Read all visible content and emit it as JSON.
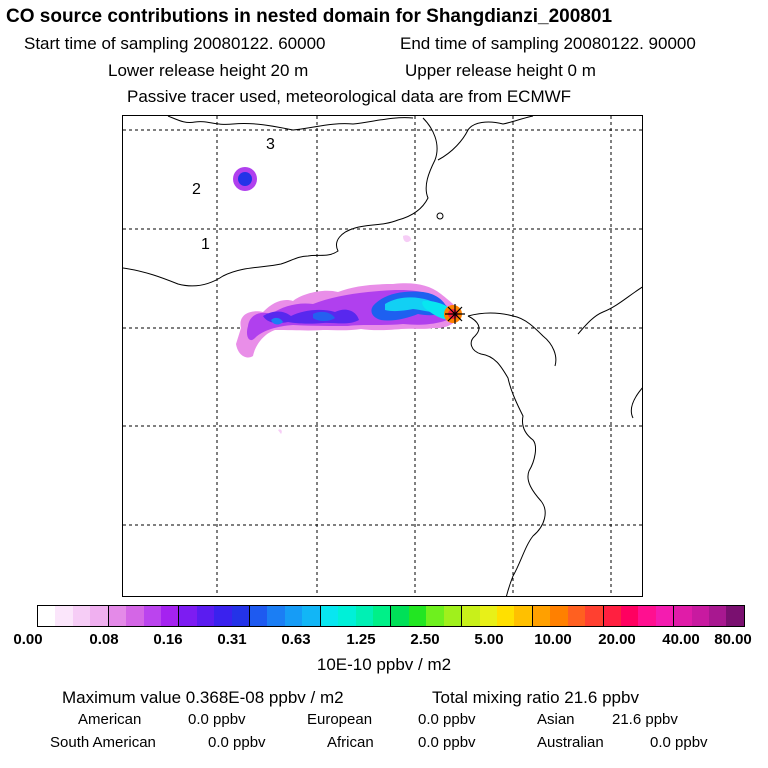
{
  "header": {
    "title": "CO  source contributions in nested domain for Shangdianzi_200801",
    "start_label": "Start time of sampling 20080122. 60000",
    "end_label": "End time of sampling 20080122. 90000",
    "lower_label": "Lower release height   20 m",
    "upper_label": "Upper release height    0 m",
    "tracer_label": "Passive tracer used, meteorological data are from ECMWF"
  },
  "map": {
    "contour_labels": [
      "1",
      "2",
      "3"
    ],
    "receptor_marker": "station-asterisk"
  },
  "colorbar": {
    "labels": [
      "0.00",
      "0.08",
      "0.16",
      "0.31",
      "0.63",
      "1.25",
      "2.50",
      "5.00",
      "10.00",
      "20.00",
      "40.00",
      "80.00"
    ],
    "colors": [
      "#ffffff",
      "#fbe6fb",
      "#f6cdf6",
      "#f0b0f0",
      "#e48ae8",
      "#d466e6",
      "#bb44ee",
      "#a522f0",
      "#7d1cf2",
      "#5b1cf0",
      "#3a22ee",
      "#2433e8",
      "#1e5af0",
      "#1b7ef4",
      "#169cf6",
      "#12b6f6",
      "#08e6f0",
      "#00f0d8",
      "#00f0b4",
      "#00f088",
      "#00e058",
      "#22e622",
      "#6ef01e",
      "#a0f01c",
      "#c8f01a",
      "#e8f018",
      "#ffe000",
      "#ffc000",
      "#ffa000",
      "#ff8000",
      "#ff6020",
      "#ff4030",
      "#ff2040",
      "#ff0060",
      "#ff1090",
      "#f41cb0",
      "#e01ca8",
      "#c81aa0",
      "#a81890",
      "#7a1070"
    ],
    "units": "10E-10 ppbv / m2"
  },
  "footer": {
    "max_value": "Maximum value  0.368E-08 ppbv / m2",
    "total": "Total mixing ratio       21.6 ppbv",
    "american": "American",
    "american_val": "0.0 ppbv",
    "european": "European",
    "european_val": "0.0 ppbv",
    "asian": "Asian",
    "asian_val": "21.6 ppbv",
    "south_american": "South American",
    "south_american_val": "0.0 ppbv",
    "african": "African",
    "african_val": "0.0 ppbv",
    "australian": "Australian",
    "australian_val": "0.0 ppbv"
  }
}
